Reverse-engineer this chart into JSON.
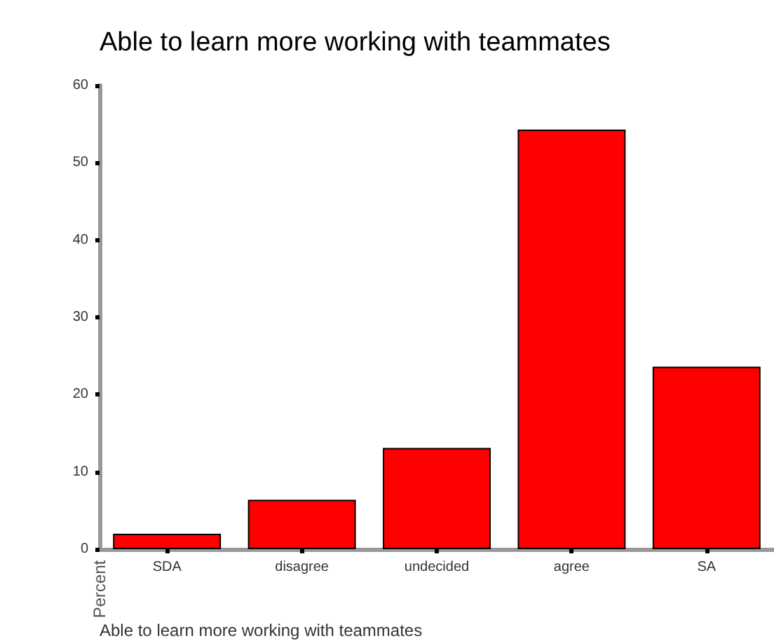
{
  "chart_data": {
    "type": "bar",
    "title": "Able to learn more working with teammates",
    "xlabel": "Able to learn more working with teammates",
    "ylabel": "Percent",
    "categories": [
      "SDA",
      "disagree",
      "undecided",
      "agree",
      "SA"
    ],
    "values": [
      2.0,
      6.4,
      13.1,
      54.3,
      23.6
    ],
    "color": "#ff0000",
    "ylim": [
      0,
      60
    ],
    "yticks": [
      0,
      10,
      20,
      30,
      40,
      50,
      60
    ],
    "grid": false
  }
}
